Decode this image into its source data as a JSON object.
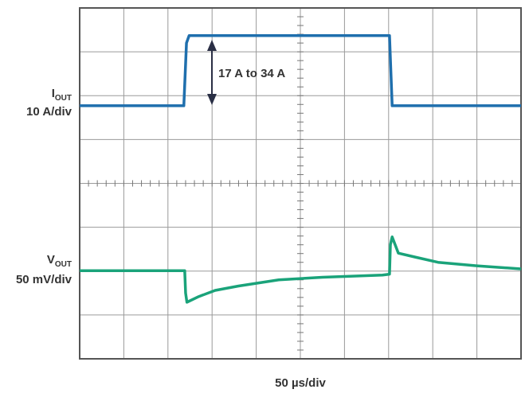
{
  "chart_data": {
    "type": "scope",
    "xlabel": "50 µs/div",
    "annotation": "17 A to 34 A",
    "xlim": [
      0,
      10
    ],
    "xticks": [
      0,
      1,
      2,
      3,
      4,
      5,
      6,
      7,
      8,
      9,
      10
    ],
    "ylim": [
      0,
      8
    ],
    "yticks": [
      0,
      1,
      2,
      3,
      4,
      5,
      6,
      7,
      8
    ],
    "grid": true,
    "series": [
      {
        "label_main": "I",
        "label_sub": "OUT",
        "scale": "10 A/div",
        "color": "#1f6fad",
        "x": [
          0,
          2.36,
          2.42,
          2.48,
          7.02,
          7.08,
          10
        ],
        "values": [
          5.77,
          5.77,
          7.2,
          7.37,
          7.37,
          5.77,
          5.77
        ]
      },
      {
        "label_main": "V",
        "label_sub": "OUT",
        "scale": "50 mV/div",
        "color": "#1aa37a",
        "x": [
          0,
          2.38,
          2.4,
          2.43,
          2.7,
          3.07,
          3.6,
          4.51,
          5.5,
          6.86,
          7.02,
          7.04,
          7.08,
          7.22,
          7.6,
          8.12,
          9,
          10
        ],
        "values": [
          2.01,
          2.01,
          1.5,
          1.29,
          1.42,
          1.56,
          1.66,
          1.8,
          1.86,
          1.91,
          1.93,
          2.6,
          2.78,
          2.41,
          2.32,
          2.2,
          2.12,
          2.05
        ]
      }
    ]
  }
}
